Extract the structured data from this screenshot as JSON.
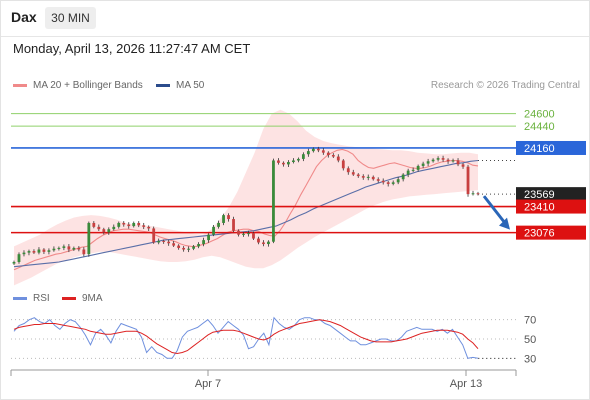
{
  "header": {
    "symbol": "Dax",
    "timeframe": "30 MIN",
    "datetime": "Monday, April 13, 2026 11:27:47 AM CET"
  },
  "legend": {
    "ma20": "MA 20 + Bollinger Bands",
    "ma50": "MA 50",
    "rsi": "RSI",
    "rsi_ma": "9MA",
    "credit": "Research © 2026 Trading Central"
  },
  "colors": {
    "bollinger_fill": "#fde0e0",
    "ma20": "#f08a8a",
    "ma50": "#5a6fa8",
    "candle_up": "#3a8a3a",
    "candle_down": "#c84040",
    "resistance_green": "#8fd06a",
    "pivot_blue": "#2a66d9",
    "support_red": "#dd1111",
    "price_tag": "#222222",
    "arrow": "#2a66b8",
    "rsi_line": "#6f90de",
    "rsi_ma_line": "#dd2222"
  },
  "chart_data": [
    {
      "type": "candlestick",
      "title": "",
      "x_labels": [
        "Apr 7",
        "Apr 13"
      ],
      "ylim": [
        22700,
        24800
      ],
      "levels": [
        {
          "value": 24600,
          "label": "24600",
          "role": "resistance",
          "color": "#8fd06a",
          "tag": false
        },
        {
          "value": 24440,
          "label": "24440",
          "role": "resistance",
          "color": "#8fd06a",
          "tag": false
        },
        {
          "value": 24160,
          "label": "24160",
          "role": "pivot",
          "color": "#2a66d9",
          "tag": true
        },
        {
          "value": 23569,
          "label": "23569",
          "role": "last_price",
          "color": "#222222",
          "tag": true
        },
        {
          "value": 23410,
          "label": "23410",
          "role": "support",
          "color": "#dd1111",
          "tag": true
        },
        {
          "value": 23076,
          "label": "23076",
          "role": "support",
          "color": "#dd1111",
          "tag": true
        }
      ],
      "close": [
        22700,
        22800,
        22820,
        22840,
        22820,
        22860,
        22830,
        22850,
        22870,
        22880,
        22900,
        22860,
        22880,
        22860,
        22800,
        23200,
        23150,
        23120,
        23080,
        23120,
        23150,
        23200,
        23180,
        23160,
        23200,
        23170,
        23150,
        23130,
        22950,
        22970,
        22960,
        22940,
        22910,
        22880,
        22860,
        22870,
        22900,
        22930,
        22980,
        23050,
        23150,
        23200,
        23300,
        23250,
        23100,
        23050,
        23060,
        23070,
        23000,
        22950,
        22930,
        22960,
        24000,
        23970,
        23950,
        23980,
        24000,
        24020,
        24080,
        24120,
        24150,
        24130,
        24100,
        24070,
        24050,
        24000,
        23900,
        23850,
        23820,
        23800,
        23780,
        23790,
        23760,
        23740,
        23720,
        23700,
        23720,
        23760,
        23820,
        23870,
        23880,
        23930,
        23960,
        23990,
        24010,
        24030,
        24010,
        23990,
        24000,
        23950,
        23920,
        23569,
        23580,
        23575
      ],
      "ma20": [
        22600,
        22630,
        22660,
        22690,
        22720,
        22740,
        22760,
        22780,
        22800,
        22810,
        22830,
        22850,
        22870,
        22890,
        22900,
        22950,
        23000,
        23040,
        23070,
        23100,
        23110,
        23120,
        23120,
        23110,
        23100,
        23090,
        23080,
        23050,
        23020,
        23000,
        22980,
        22960,
        22930,
        22910,
        22900,
        22900,
        22920,
        22940,
        22970,
        23000,
        23040,
        23080,
        23100,
        23110,
        23120,
        23120,
        23100,
        23090,
        23060,
        23040,
        23030,
        23100,
        23200,
        23320,
        23430,
        23560,
        23680,
        23800,
        23920,
        24000,
        24060,
        24100,
        24130,
        24140,
        24120,
        24080,
        24000,
        23950,
        23910,
        23900,
        23920,
        23940,
        23960,
        23970,
        23950,
        23930,
        23910,
        23900,
        23900,
        23910,
        23930,
        23960,
        23980,
        23990,
        24000,
        24000,
        23990,
        23970,
        23940,
        23930
      ],
      "ma50": [
        22640,
        22650,
        22660,
        22670,
        22680,
        22690,
        22700,
        22720,
        22740,
        22760,
        22780,
        22800,
        22820,
        22840,
        22860,
        22880,
        22900,
        22920,
        22940,
        22960,
        22980,
        22990,
        23000,
        23010,
        23020,
        23030,
        23040,
        23050,
        23060,
        23070,
        23080,
        23090,
        23100,
        23120,
        23140,
        23160,
        23200,
        23240,
        23290,
        23330,
        23380,
        23420,
        23460,
        23500,
        23540,
        23580,
        23620,
        23660,
        23690,
        23720,
        23750,
        23780,
        23800,
        23830,
        23860,
        23880,
        23900,
        23920,
        23940,
        23960,
        23970,
        23990,
        24000
      ],
      "bb_upper": [
        22900,
        22950,
        23000,
        23050,
        23120,
        23180,
        23230,
        23270,
        23290,
        23300,
        23290,
        23270,
        23240,
        23200,
        23180,
        23170,
        23160,
        23140,
        23120,
        23100,
        23080,
        23060,
        23050,
        23120,
        23250,
        23400,
        23600,
        23850,
        24100,
        24400,
        24600,
        24650,
        24600,
        24500,
        24380,
        24300,
        24250,
        24220,
        24200,
        24180,
        24170,
        24160,
        24150,
        24140,
        24130,
        24130,
        24120,
        24100,
        24090,
        24080,
        24080,
        24090,
        24100,
        24100,
        24080
      ],
      "bb_lower": [
        22400,
        22450,
        22500,
        22560,
        22620,
        22680,
        22720,
        22760,
        22790,
        22810,
        22830,
        22830,
        22810,
        22790,
        22770,
        22750,
        22730,
        22710,
        22700,
        22700,
        22710,
        22730,
        22760,
        22780,
        22760,
        22720,
        22680,
        22640,
        22620,
        22620,
        22660,
        22720,
        22800,
        22880,
        22950,
        23020,
        23080,
        23140,
        23200,
        23260,
        23320,
        23380,
        23430,
        23470,
        23500,
        23520,
        23540,
        23550,
        23560,
        23570,
        23580,
        23590,
        23600,
        23610,
        23620
      ]
    },
    {
      "type": "line",
      "title": "",
      "ylim": [
        20,
        80
      ],
      "y_ticks": [
        30,
        50,
        70
      ],
      "series": [
        {
          "name": "RSI",
          "values": [
            58,
            64,
            66,
            70,
            72,
            68,
            66,
            70,
            64,
            60,
            66,
            70,
            68,
            62,
            54,
            44,
            56,
            60,
            54,
            46,
            58,
            66,
            64,
            62,
            60,
            52,
            36,
            42,
            36,
            34,
            30,
            30,
            38,
            52,
            58,
            60,
            62,
            66,
            70,
            64,
            56,
            62,
            68,
            64,
            60,
            54,
            40,
            42,
            50,
            56,
            44,
            72,
            66,
            62,
            60,
            64,
            70,
            72,
            72,
            70,
            70,
            66,
            64,
            60,
            56,
            52,
            48,
            48,
            44,
            44,
            46,
            48,
            50,
            50,
            48,
            48,
            52,
            58,
            60,
            62,
            60,
            60,
            60,
            58,
            60,
            56,
            60,
            52,
            44,
            30,
            31,
            30
          ]
        },
        {
          "name": "9MA",
          "values": [
            60,
            62,
            63,
            64,
            65,
            65,
            66,
            66,
            66,
            65,
            64,
            63,
            62,
            61,
            60,
            58,
            57,
            56,
            55,
            55,
            56,
            57,
            58,
            58,
            58,
            56,
            53,
            49,
            45,
            42,
            39,
            36,
            35,
            36,
            38,
            42,
            46,
            50,
            54,
            57,
            58,
            59,
            59,
            59,
            58,
            56,
            54,
            52,
            50,
            49,
            51,
            55,
            58,
            60,
            62,
            64,
            66,
            67,
            68,
            69,
            70,
            69,
            68,
            66,
            64,
            61,
            58,
            55,
            52,
            50,
            48,
            47,
            47,
            47,
            47,
            48,
            49,
            50,
            52,
            54,
            56,
            57,
            58,
            59,
            59,
            59,
            58,
            57,
            55,
            50,
            46,
            40
          ]
        }
      ]
    }
  ]
}
